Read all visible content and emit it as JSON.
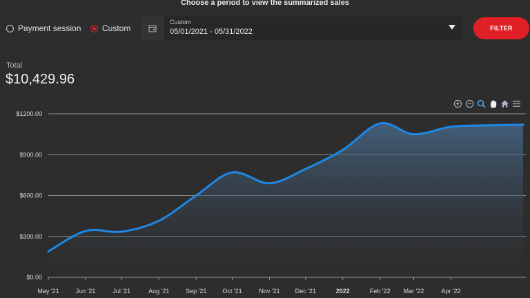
{
  "heading": "Choose a period to view the summarized sales",
  "period_options": [
    {
      "label": "Payment session",
      "checked": false
    },
    {
      "label": "Custom",
      "checked": true
    }
  ],
  "date_select": {
    "label": "Custom",
    "value": "05/01/2021 - 05/31/2022"
  },
  "filter_label": "FILTER",
  "total": {
    "label": "Total",
    "value": "$10,429.96"
  },
  "toolbar_icons": [
    "zoom-in-icon",
    "zoom-out-icon",
    "zoom-select-icon",
    "pan-icon",
    "home-icon",
    "menu-icon"
  ],
  "colors": {
    "accent": "#e01f26",
    "series": "#1e88e5",
    "background": "#2d2d2d"
  },
  "chart_data": {
    "type": "area",
    "title": "",
    "xlabel": "",
    "ylabel": "",
    "ylim": [
      0,
      1200
    ],
    "y_ticks": [
      0,
      300,
      600,
      900,
      1200
    ],
    "y_tick_labels": [
      "$0.00",
      "$300.00",
      "$600.00",
      "$900.00",
      "$1200.00"
    ],
    "x_tick_labels": [
      "May '21",
      "Jun '21",
      "Jul '21",
      "Aug '21",
      "Sep '21",
      "Oct '21",
      "Nov '21",
      "Dec '21",
      "2022",
      "Feb '22",
      "Mar '22",
      "Apr '22"
    ],
    "grid": true,
    "series": [
      {
        "values": [
          {
            "x": "2021-05-01",
            "y": 190
          },
          {
            "x": "2021-06-01",
            "y": 340
          },
          {
            "x": "2021-07-01",
            "y": 335
          },
          {
            "x": "2021-08-01",
            "y": 415
          },
          {
            "x": "2021-09-01",
            "y": 600
          },
          {
            "x": "2021-10-01",
            "y": 770
          },
          {
            "x": "2021-11-01",
            "y": 690
          },
          {
            "x": "2021-12-01",
            "y": 795
          },
          {
            "x": "2022-01-01",
            "y": 935
          },
          {
            "x": "2022-02-01",
            "y": 1130
          },
          {
            "x": "2022-03-01",
            "y": 1050
          },
          {
            "x": "2022-04-01",
            "y": 1105
          },
          {
            "x": "2022-05-01",
            "y": 1115
          },
          {
            "x": "2022-05-31",
            "y": 1120
          }
        ]
      }
    ]
  }
}
